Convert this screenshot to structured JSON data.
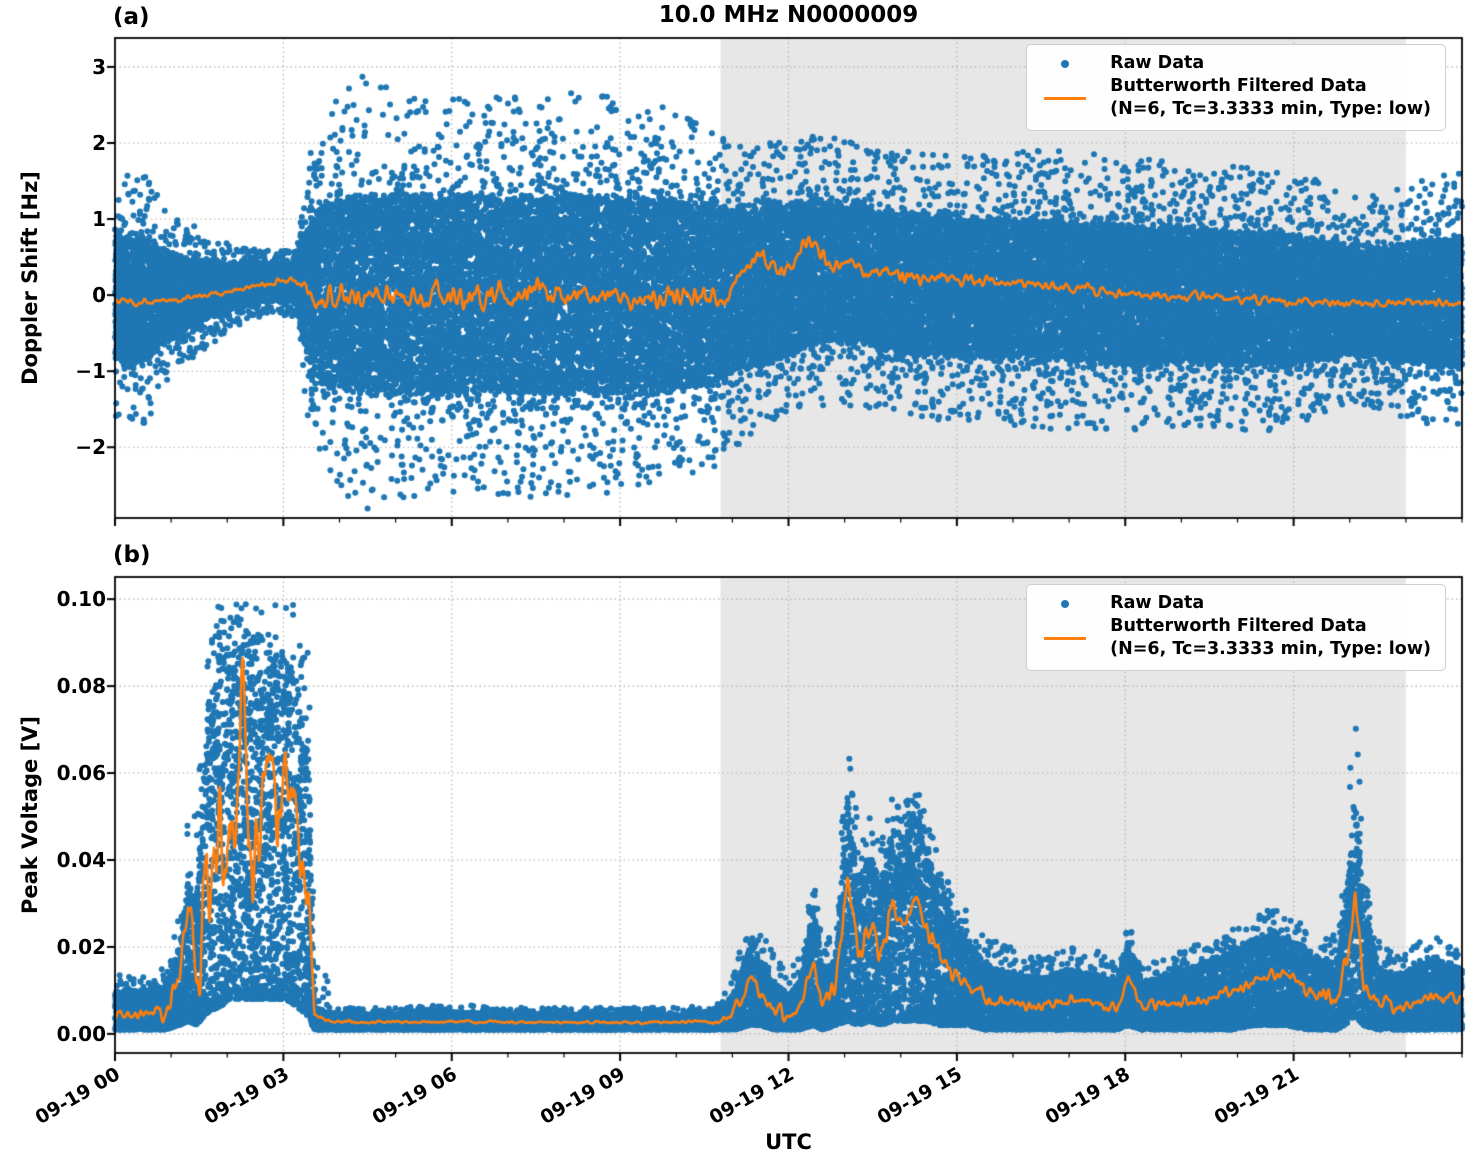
{
  "figure": {
    "title": "10.0 MHz N0000009",
    "xlabel": "UTC"
  },
  "colors": {
    "raw": "#1f77b4",
    "filtered": "#ff7f0e",
    "shade": "#e7e7e7",
    "grid": "#b0b0b0",
    "axis": "#000000",
    "background": "#ffffff"
  },
  "x_axis": {
    "range_hours": [
      0,
      24
    ],
    "tick_hours": [
      0,
      3,
      6,
      9,
      12,
      15,
      18,
      21
    ],
    "tick_labels": [
      "09-19 00",
      "09-19 03",
      "09-19 06",
      "09-19 09",
      "09-19 12",
      "09-19 15",
      "09-19 18",
      "09-19 21"
    ],
    "minor_tick_step_hours": 1
  },
  "shaded_span_hours": [
    10.79,
    23.0
  ],
  "render": {
    "seed": 1234567,
    "points_a": 38000,
    "points_b": 24000,
    "marker_radius": 3.0,
    "line_width": 2.6,
    "line_samples": 2600
  },
  "chart_data": [
    {
      "id": "a",
      "type": "scatter+line",
      "panel_label": "(a)",
      "ylabel": "Doppler Shift [Hz]",
      "ylim": [
        -2.93,
        3.38
      ],
      "yticks": {
        "values": [
          3,
          2,
          1,
          0,
          -1,
          -2
        ],
        "labels": [
          "3",
          "2",
          "1",
          "0",
          "−1",
          "−2"
        ]
      },
      "legend": {
        "raw": "Raw Data",
        "filtered_line1": "Butterworth Filtered Data",
        "filtered_line2": "(N=6, Tc=3.3333 min, Type: low)"
      },
      "raw_envelope_columns": [
        "hour",
        "center_hz",
        "core_halfwidth_hz",
        "outlier_halfwidth_hz"
      ],
      "raw_envelope": [
        [
          0,
          -0.05,
          0.78,
          1.65
        ],
        [
          0.5,
          -0.07,
          0.8,
          1.7
        ],
        [
          0.9,
          -0.02,
          0.6,
          1.3
        ],
        [
          1.3,
          0.02,
          0.45,
          0.95
        ],
        [
          1.8,
          0.08,
          0.33,
          0.7
        ],
        [
          2.3,
          0.13,
          0.27,
          0.5
        ],
        [
          2.8,
          0.18,
          0.22,
          0.42
        ],
        [
          3.2,
          0.17,
          0.24,
          0.5
        ],
        [
          3.45,
          0.05,
          0.9,
          1.8
        ],
        [
          3.7,
          0,
          1.2,
          2.4
        ],
        [
          4.4,
          0.02,
          1.28,
          3.0
        ],
        [
          5,
          0,
          1.3,
          2.75
        ],
        [
          6,
          0,
          1.3,
          2.65
        ],
        [
          7,
          0,
          1.28,
          2.7
        ],
        [
          8,
          0,
          1.3,
          2.75
        ],
        [
          9,
          0,
          1.27,
          2.65
        ],
        [
          10,
          0,
          1.25,
          2.5
        ],
        [
          10.7,
          0,
          1.15,
          2.3
        ],
        [
          11.2,
          0.05,
          1.0,
          2.0
        ],
        [
          11.8,
          0.15,
          1.0,
          1.95
        ],
        [
          12.4,
          0.3,
          0.92,
          1.85
        ],
        [
          13,
          0.3,
          0.9,
          1.8
        ],
        [
          13.6,
          0.2,
          0.88,
          1.75
        ],
        [
          14.2,
          0.15,
          0.9,
          1.8
        ],
        [
          15,
          0.1,
          0.9,
          1.8
        ],
        [
          16,
          0.1,
          0.9,
          1.85
        ],
        [
          17,
          0.05,
          0.9,
          1.9
        ],
        [
          18,
          0,
          0.9,
          1.85
        ],
        [
          19,
          0,
          0.88,
          1.8
        ],
        [
          20,
          -0.05,
          0.86,
          1.8
        ],
        [
          21,
          -0.05,
          0.85,
          1.75
        ],
        [
          21.8,
          -0.08,
          0.72,
          1.5
        ],
        [
          22.3,
          -0.1,
          0.68,
          1.45
        ],
        [
          23,
          -0.1,
          0.78,
          1.65
        ],
        [
          24,
          -0.1,
          0.85,
          1.75
        ]
      ],
      "raw_extremes_hz": {
        "max": 3.1,
        "min": -2.7
      },
      "filtered_points": [
        [
          0,
          -0.05
        ],
        [
          0.4,
          -0.1
        ],
        [
          0.8,
          -0.08
        ],
        [
          1.2,
          -0.05
        ],
        [
          1.6,
          0
        ],
        [
          2,
          0.06
        ],
        [
          2.4,
          0.1
        ],
        [
          2.8,
          0.17
        ],
        [
          3.1,
          0.2
        ],
        [
          3.35,
          0.12
        ],
        [
          3.6,
          -0.05
        ],
        [
          4,
          -0.02
        ],
        [
          4.5,
          -0.05
        ],
        [
          5,
          0
        ],
        [
          5.5,
          -0.03
        ],
        [
          6,
          0
        ],
        [
          6.5,
          -0.04
        ],
        [
          7,
          -0.02
        ],
        [
          7.5,
          0
        ],
        [
          8,
          -0.03
        ],
        [
          8.5,
          0
        ],
        [
          9,
          -0.02
        ],
        [
          9.5,
          -0.04
        ],
        [
          10,
          -0.02
        ],
        [
          10.4,
          0
        ],
        [
          10.8,
          -0.05
        ],
        [
          11.1,
          0.15
        ],
        [
          11.4,
          0.5
        ],
        [
          11.55,
          0.58
        ],
        [
          11.7,
          0.35
        ],
        [
          11.9,
          0.3
        ],
        [
          12.1,
          0.4
        ],
        [
          12.3,
          0.68
        ],
        [
          12.5,
          0.6
        ],
        [
          12.7,
          0.38
        ],
        [
          12.9,
          0.42
        ],
        [
          13.1,
          0.45
        ],
        [
          13.4,
          0.32
        ],
        [
          13.8,
          0.28
        ],
        [
          14.2,
          0.26
        ],
        [
          14.6,
          0.22
        ],
        [
          15,
          0.2
        ],
        [
          15.5,
          0.18
        ],
        [
          16,
          0.16
        ],
        [
          16.5,
          0.14
        ],
        [
          17,
          0.1
        ],
        [
          17.5,
          0.06
        ],
        [
          18,
          0.02
        ],
        [
          18.5,
          0
        ],
        [
          19,
          -0.02
        ],
        [
          19.5,
          -0.03
        ],
        [
          20,
          -0.05
        ],
        [
          20.5,
          -0.06
        ],
        [
          21,
          -0.08
        ],
        [
          21.5,
          -0.1
        ],
        [
          22,
          -0.1
        ],
        [
          22.5,
          -0.12
        ],
        [
          23,
          -0.1
        ],
        [
          23.5,
          -0.11
        ],
        [
          24,
          -0.12
        ]
      ],
      "filtered_noise_amp": [
        [
          0,
          0.05
        ],
        [
          1,
          0.045
        ],
        [
          2,
          0.035
        ],
        [
          3.2,
          0.04
        ],
        [
          3.6,
          0.16
        ],
        [
          5,
          0.16
        ],
        [
          7,
          0.16
        ],
        [
          9,
          0.16
        ],
        [
          10.6,
          0.15
        ],
        [
          11,
          0.12
        ],
        [
          12,
          0.11
        ],
        [
          13,
          0.1
        ],
        [
          14,
          0.09
        ],
        [
          15,
          0.08
        ],
        [
          16,
          0.07
        ],
        [
          17,
          0.07
        ],
        [
          18,
          0.06
        ],
        [
          19,
          0.06
        ],
        [
          20,
          0.06
        ],
        [
          21,
          0.06
        ],
        [
          22,
          0.07
        ],
        [
          23,
          0.06
        ],
        [
          24,
          0.06
        ]
      ]
    },
    {
      "id": "b",
      "type": "scatter+line",
      "panel_label": "(b)",
      "ylabel": "Peak Voltage [V]",
      "ylim": [
        -0.0044,
        0.1051
      ],
      "yticks": {
        "values": [
          0.1,
          0.08,
          0.06,
          0.04,
          0.02,
          0.0
        ],
        "labels": [
          "0.10",
          "0.08",
          "0.06",
          "0.04",
          "0.02",
          "0.00"
        ]
      },
      "legend": {
        "raw": "Raw Data",
        "filtered_line1": "Butterworth Filtered Data",
        "filtered_line2": "(N=6, Tc=3.3333 min, Type: low)"
      },
      "profile_columns": [
        "hour",
        "raw_low_v",
        "raw_high_v",
        "raw_spike_top_v",
        "filtered_v"
      ],
      "profile": [
        [
          0,
          0.001,
          0.01,
          0.014,
          0.005
        ],
        [
          0.5,
          0.001,
          0.01,
          0.013,
          0.0045
        ],
        [
          0.9,
          0.001,
          0.011,
          0.016,
          0.005
        ],
        [
          1.15,
          0.002,
          0.02,
          0.03,
          0.012
        ],
        [
          1.3,
          0.003,
          0.035,
          0.065,
          0.032
        ],
        [
          1.45,
          0.002,
          0.03,
          0.05,
          0.013
        ],
        [
          1.65,
          0.005,
          0.075,
          0.098,
          0.035
        ],
        [
          1.85,
          0.006,
          0.088,
          0.1,
          0.048
        ],
        [
          2.05,
          0.008,
          0.092,
          0.1,
          0.038
        ],
        [
          2.25,
          0.008,
          0.09,
          0.1,
          0.074
        ],
        [
          2.45,
          0.008,
          0.09,
          0.1,
          0.042
        ],
        [
          2.6,
          0.008,
          0.085,
          0.098,
          0.055
        ],
        [
          2.75,
          0.008,
          0.085,
          0.098,
          0.07
        ],
        [
          2.9,
          0.008,
          0.088,
          0.1,
          0.045
        ],
        [
          3.05,
          0.008,
          0.088,
          0.1,
          0.068
        ],
        [
          3.25,
          0.006,
          0.08,
          0.1,
          0.042
        ],
        [
          3.45,
          0.004,
          0.065,
          0.09,
          0.028
        ],
        [
          3.55,
          0.001,
          0.006,
          0.02,
          0.004
        ],
        [
          4,
          0.001,
          0.0045,
          0.006,
          0.0027
        ],
        [
          5,
          0.001,
          0.0045,
          0.006,
          0.0027
        ],
        [
          6,
          0.001,
          0.005,
          0.007,
          0.0028
        ],
        [
          7,
          0.001,
          0.0045,
          0.006,
          0.0027
        ],
        [
          8,
          0.001,
          0.0045,
          0.006,
          0.0026
        ],
        [
          9,
          0.001,
          0.0045,
          0.006,
          0.0027
        ],
        [
          10,
          0.001,
          0.0045,
          0.006,
          0.0027
        ],
        [
          10.8,
          0.001,
          0.005,
          0.007,
          0.003
        ],
        [
          11.05,
          0.001,
          0.01,
          0.016,
          0.006
        ],
        [
          11.3,
          0.002,
          0.02,
          0.026,
          0.012
        ],
        [
          11.5,
          0.002,
          0.018,
          0.024,
          0.009
        ],
        [
          11.75,
          0.001,
          0.012,
          0.018,
          0.006
        ],
        [
          12,
          0.001,
          0.009,
          0.014,
          0.004
        ],
        [
          12.2,
          0.001,
          0.012,
          0.018,
          0.006
        ],
        [
          12.45,
          0.002,
          0.03,
          0.037,
          0.016
        ],
        [
          12.6,
          0.001,
          0.014,
          0.02,
          0.007
        ],
        [
          12.85,
          0.002,
          0.018,
          0.025,
          0.011
        ],
        [
          13.05,
          0.003,
          0.055,
          0.073,
          0.0385
        ],
        [
          13.25,
          0.002,
          0.035,
          0.045,
          0.018
        ],
        [
          13.45,
          0.003,
          0.042,
          0.05,
          0.025
        ],
        [
          13.65,
          0.002,
          0.035,
          0.045,
          0.019
        ],
        [
          13.85,
          0.003,
          0.048,
          0.056,
          0.028
        ],
        [
          14.05,
          0.003,
          0.045,
          0.052,
          0.024
        ],
        [
          14.25,
          0.003,
          0.052,
          0.058,
          0.031
        ],
        [
          14.45,
          0.003,
          0.042,
          0.05,
          0.024
        ],
        [
          14.65,
          0.002,
          0.035,
          0.042,
          0.018
        ],
        [
          14.9,
          0.002,
          0.028,
          0.035,
          0.014
        ],
        [
          15.2,
          0.002,
          0.022,
          0.028,
          0.011
        ],
        [
          15.5,
          0.001,
          0.016,
          0.022,
          0.008
        ],
        [
          16,
          0.001,
          0.014,
          0.02,
          0.007
        ],
        [
          16.5,
          0.001,
          0.013,
          0.018,
          0.006
        ],
        [
          17,
          0.001,
          0.015,
          0.02,
          0.008
        ],
        [
          17.5,
          0.001,
          0.014,
          0.019,
          0.007
        ],
        [
          17.85,
          0.001,
          0.012,
          0.016,
          0.006
        ],
        [
          18.05,
          0.002,
          0.022,
          0.027,
          0.013
        ],
        [
          18.3,
          0.001,
          0.012,
          0.016,
          0.006
        ],
        [
          18.7,
          0.001,
          0.013,
          0.017,
          0.0065
        ],
        [
          19.1,
          0.001,
          0.015,
          0.02,
          0.007
        ],
        [
          19.5,
          0.001,
          0.017,
          0.022,
          0.008
        ],
        [
          19.9,
          0.001,
          0.019,
          0.024,
          0.01
        ],
        [
          20.3,
          0.002,
          0.022,
          0.027,
          0.012
        ],
        [
          20.6,
          0.002,
          0.024,
          0.029,
          0.014
        ],
        [
          20.9,
          0.002,
          0.022,
          0.027,
          0.013
        ],
        [
          21.2,
          0.001,
          0.02,
          0.025,
          0.011
        ],
        [
          21.5,
          0.001,
          0.017,
          0.022,
          0.008
        ],
        [
          21.8,
          0.001,
          0.018,
          0.023,
          0.009
        ],
        [
          22.0,
          0.003,
          0.04,
          0.06,
          0.02
        ],
        [
          22.1,
          0.004,
          0.055,
          0.076,
          0.033
        ],
        [
          22.25,
          0.002,
          0.03,
          0.04,
          0.012
        ],
        [
          22.5,
          0.001,
          0.016,
          0.022,
          0.007
        ],
        [
          22.8,
          0.001,
          0.013,
          0.018,
          0.006
        ],
        [
          23.1,
          0.001,
          0.015,
          0.02,
          0.007
        ],
        [
          23.5,
          0.001,
          0.018,
          0.023,
          0.009
        ],
        [
          23.8,
          0.001,
          0.015,
          0.02,
          0.008
        ],
        [
          24,
          0.001,
          0.016,
          0.021,
          0.008
        ]
      ],
      "filtered_noise_amp": [
        [
          0,
          0.0012
        ],
        [
          0.9,
          0.0015
        ],
        [
          1.3,
          0.005
        ],
        [
          1.6,
          0.012
        ],
        [
          2,
          0.013
        ],
        [
          2.5,
          0.013
        ],
        [
          3,
          0.013
        ],
        [
          3.4,
          0.009
        ],
        [
          3.6,
          0.0004
        ],
        [
          5,
          0.0003
        ],
        [
          8,
          0.0003
        ],
        [
          10.7,
          0.0004
        ],
        [
          11,
          0.0012
        ],
        [
          11.5,
          0.002
        ],
        [
          12,
          0.0015
        ],
        [
          12.5,
          0.002
        ],
        [
          13,
          0.004
        ],
        [
          13.5,
          0.0035
        ],
        [
          14,
          0.0035
        ],
        [
          14.5,
          0.003
        ],
        [
          15,
          0.002
        ],
        [
          16,
          0.0012
        ],
        [
          17,
          0.0012
        ],
        [
          18,
          0.0015
        ],
        [
          19,
          0.0012
        ],
        [
          20,
          0.0015
        ],
        [
          21,
          0.0015
        ],
        [
          22,
          0.003
        ],
        [
          22.3,
          0.002
        ],
        [
          23,
          0.0012
        ],
        [
          24,
          0.0012
        ]
      ]
    }
  ]
}
